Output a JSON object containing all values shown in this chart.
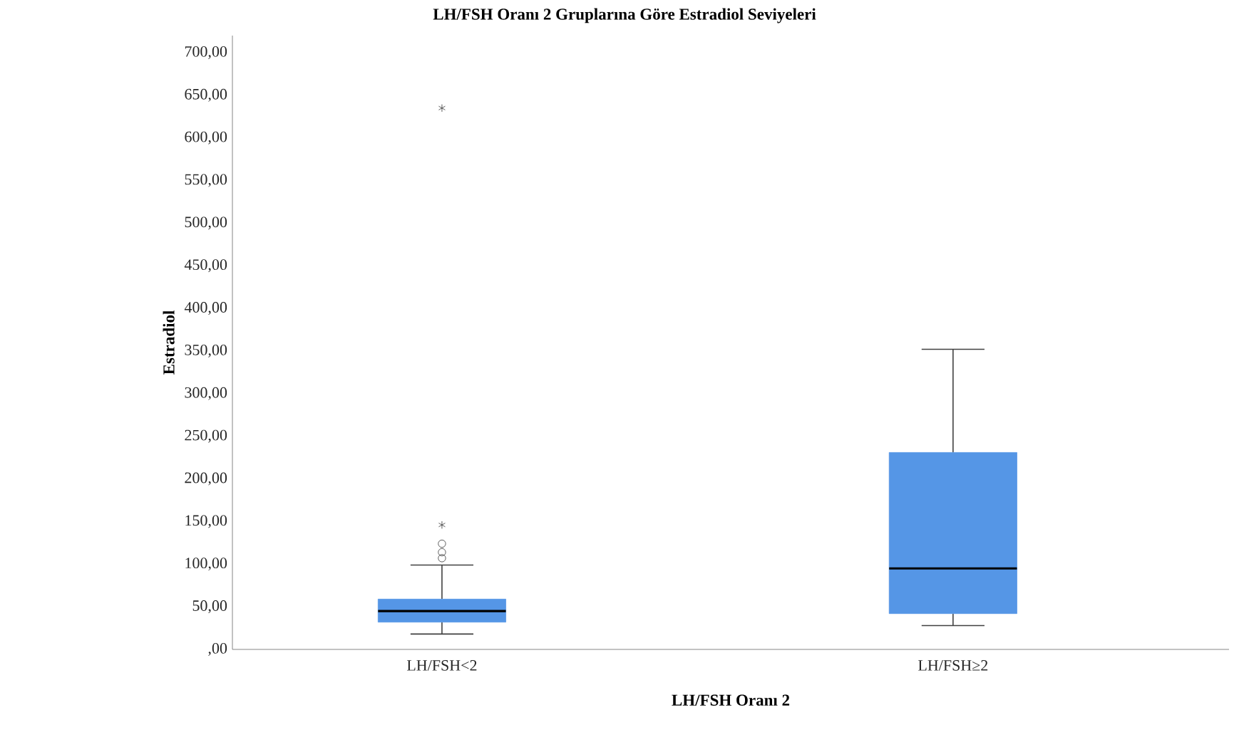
{
  "chart_data": {
    "type": "box",
    "title": "LH/FSH Oranı 2 Gruplarına Göre Estradiol Seviyeleri",
    "xlabel": "LH/FSH Oranı 2",
    "ylabel": "Estradiol",
    "categories": [
      "LH/FSH<2",
      "LH/FSH≥2"
    ],
    "series": [
      {
        "color": "#5596e6",
        "boxes": [
          {
            "low": 18,
            "q1": 32,
            "median": 45,
            "q3": 59,
            "high": 99,
            "outliers": [
              107,
              114,
              124,
              146,
              635
            ]
          },
          {
            "low": 28,
            "q1": 42,
            "median": 95,
            "q3": 231,
            "high": 352
          }
        ]
      }
    ],
    "ylim": [
      0,
      720
    ],
    "yticks": [
      {
        "value": 0,
        "label": ",00"
      },
      {
        "value": 50,
        "label": "50,00"
      },
      {
        "value": 100,
        "label": "100,00"
      },
      {
        "value": 150,
        "label": "150,00"
      },
      {
        "value": 200,
        "label": "200,00"
      },
      {
        "value": 250,
        "label": "250,00"
      },
      {
        "value": 300,
        "label": "300,00"
      },
      {
        "value": 350,
        "label": "350,00"
      },
      {
        "value": 400,
        "label": "400,00"
      },
      {
        "value": 450,
        "label": "450,00"
      },
      {
        "value": 500,
        "label": "500,00"
      },
      {
        "value": 550,
        "label": "550,00"
      },
      {
        "value": 600,
        "label": "600,00"
      },
      {
        "value": 650,
        "label": "650,00"
      },
      {
        "value": 700,
        "label": "700,00"
      }
    ]
  }
}
